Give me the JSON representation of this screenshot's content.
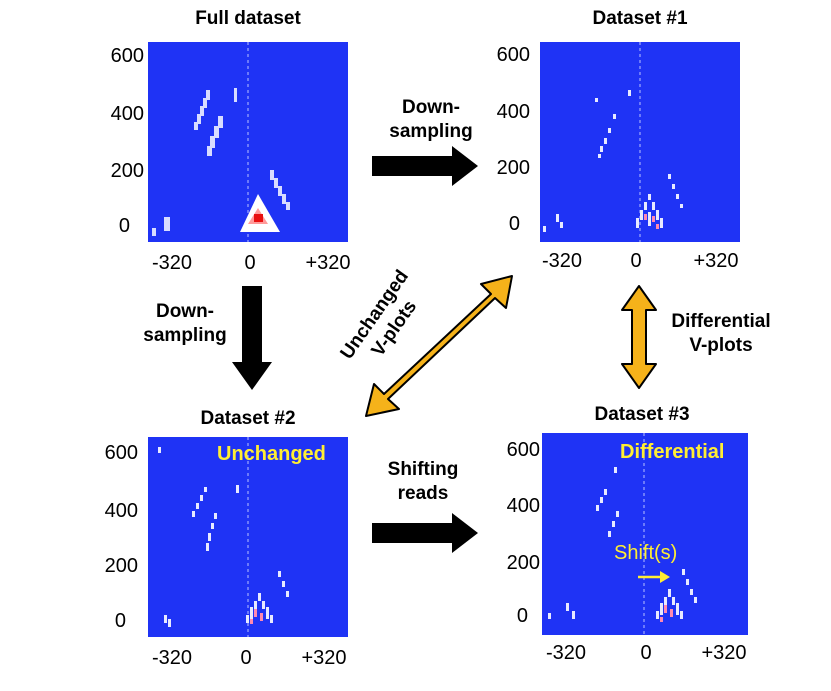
{
  "colors": {
    "plot_bg": "#1f33f5",
    "black_arrow": "#000000",
    "orange_arrow": "#f5b21a",
    "highlight_text": "#ffee33"
  },
  "panels": {
    "full": {
      "title": "Full dataset",
      "yticks": [
        "600",
        "400",
        "200",
        "0"
      ],
      "xticks": [
        "-320",
        "0",
        "+320"
      ]
    },
    "d1": {
      "title": "Dataset #1",
      "yticks": [
        "600",
        "400",
        "200",
        "0"
      ],
      "xticks": [
        "-320",
        "0",
        "+320"
      ]
    },
    "d2": {
      "title": "Dataset #2",
      "overlay": "Unchanged",
      "yticks": [
        "600",
        "400",
        "200",
        "0"
      ],
      "xticks": [
        "-320",
        "0",
        "+320"
      ]
    },
    "d3": {
      "title": "Dataset #3",
      "overlay": "Differential",
      "shift_label": "Shift(s)",
      "yticks": [
        "600",
        "400",
        "200",
        "0"
      ],
      "xticks": [
        "-320",
        "0",
        "+320"
      ]
    }
  },
  "arrows": {
    "top": {
      "line1": "Down-",
      "line2": "sampling"
    },
    "left": {
      "line1": "Down-",
      "line2": "sampling"
    },
    "bottom": {
      "line1": "Shifting",
      "line2": "reads"
    },
    "diagonal": {
      "line1": "Unchanged",
      "line2": "V-plots"
    },
    "right": {
      "line1": "Differential",
      "line2": "V-plots"
    }
  }
}
